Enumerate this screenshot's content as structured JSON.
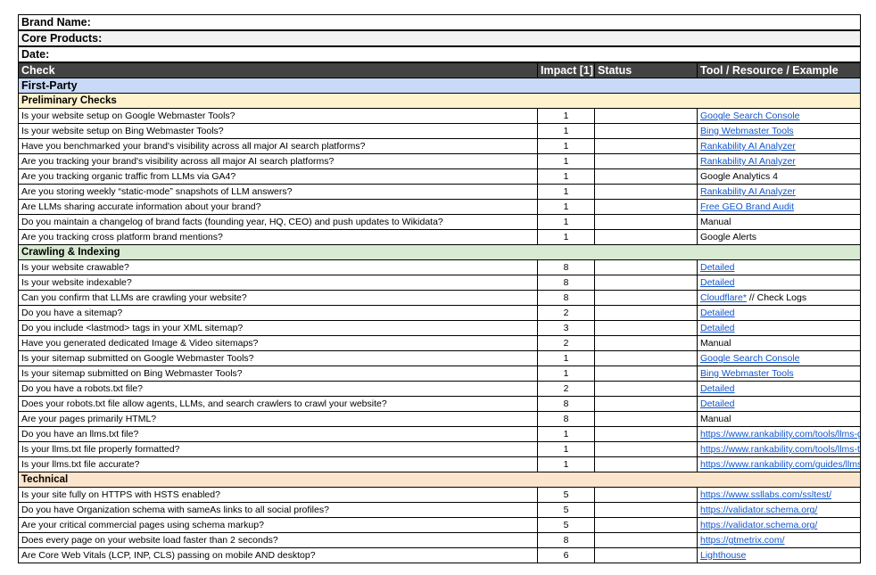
{
  "meta": {
    "brand": "Brand Name:",
    "products": "Core Products:",
    "date": "Date:"
  },
  "header": {
    "check": "Check",
    "impact": "Impact [1]",
    "status": "Status",
    "tool": "Tool / Resource / Example"
  },
  "group": "First-Party",
  "colors": {
    "header": "#434343",
    "group": "#c9daf8",
    "preliminary": "#fff2cc",
    "crawling": "#d9ead3",
    "technical": "#fce5cd"
  },
  "sections": [
    {
      "title": "Preliminary Checks",
      "color": "#fff2cc",
      "rows": [
        {
          "check": "Is your website setup on Google Webmaster Tools?",
          "impact": "1",
          "tool": "Google Search Console",
          "link": true
        },
        {
          "check": "Is your website setup on Bing Webmaster Tools?",
          "impact": "1",
          "tool": "Bing Webmaster Tools",
          "link": true
        },
        {
          "check": "Have you benchmarked your brand's visibility across all major AI search platforms?",
          "impact": "1",
          "tool": "Rankability AI Analyzer",
          "link": true
        },
        {
          "check": "Are you tracking your brand's visibility across all major AI search platforms?",
          "impact": "1",
          "tool": "Rankability AI Analyzer",
          "link": true
        },
        {
          "check": "Are you tracking organic traffic from LLMs via GA4?",
          "impact": "1",
          "tool": "Google Analytics 4",
          "link": false
        },
        {
          "check": "Are you storing weekly “static-mode” snapshots of LLM answers?",
          "impact": "1",
          "tool": "Rankability AI Analyzer",
          "link": true
        },
        {
          "check": "Are LLMs sharing accurate information about your brand?",
          "impact": "1",
          "tool": "Free GEO Brand Audit",
          "link": true
        },
        {
          "check": "Do you maintain a changelog of brand facts (founding year, HQ, CEO) and push updates to Wikidata?",
          "impact": "1",
          "tool": "Manual",
          "link": false
        },
        {
          "check": "Are you tracking cross platform brand mentions?",
          "impact": "1",
          "tool": "Google Alerts",
          "link": false
        }
      ]
    },
    {
      "title": "Crawling & Indexing",
      "color": "#d9ead3",
      "rows": [
        {
          "check": "Is your website crawable?",
          "impact": "8",
          "tool": "Detailed",
          "link": true
        },
        {
          "check": "Is your website indexable?",
          "impact": "8",
          "tool": "Detailed",
          "link": true
        },
        {
          "check": "Can you confirm that LLMs are crawling your website?",
          "impact": "8",
          "tool": "Cloudflare*",
          "link": true,
          "extra": " // Check Logs"
        },
        {
          "check": "Do you have a sitemap?",
          "impact": "2",
          "tool": "Detailed",
          "link": true
        },
        {
          "check": "Do you include <lastmod> tags in your XML sitemap?",
          "impact": "3",
          "tool": "Detailed",
          "link": true
        },
        {
          "check": "Have you generated dedicated Image & Video sitemaps?",
          "impact": "2",
          "tool": "Manual",
          "link": false
        },
        {
          "check": "Is your sitemap submitted on Google Webmaster Tools?",
          "impact": "1",
          "tool": "Google Search Console",
          "link": true
        },
        {
          "check": "Is your sitemap submitted on Bing Webmaster Tools?",
          "impact": "1",
          "tool": "Bing Webmaster Tools",
          "link": true
        },
        {
          "check": "Do you have a robots.txt file?",
          "impact": "2",
          "tool": "Detailed",
          "link": true
        },
        {
          "check": "Does your robots.txt file allow agents, LLMs, and search crawlers to crawl your website?",
          "impact": "8",
          "tool": "Detailed",
          "link": true
        },
        {
          "check": "Are your pages primarily HTML?",
          "impact": "8",
          "tool": "Manual",
          "link": false
        },
        {
          "check": "Do you have an llms.txt file?",
          "impact": "1",
          "tool": "https://www.rankability.com/tools/llms-g",
          "link": true
        },
        {
          "check": "Is your llms.txt file properly formatted?",
          "impact": "1",
          "tool": "https://www.rankability.com/tools/llms-tx",
          "link": true
        },
        {
          "check": "Is your llms.txt file accurate?",
          "impact": "1",
          "tool": "https://www.rankability.com/guides/llms",
          "link": true
        }
      ]
    },
    {
      "title": "Technical",
      "color": "#fce5cd",
      "rows": [
        {
          "check": "Is your site fully on HTTPS with HSTS enabled?",
          "impact": "5",
          "tool": "https://www.ssllabs.com/ssltest/",
          "link": true
        },
        {
          "check": "Do you have Organization schema with sameAs links to all social profiles?",
          "impact": "5",
          "tool": "https://validator.schema.org/",
          "link": true
        },
        {
          "check": "Are your critical commercial pages using schema markup?",
          "impact": "5",
          "tool": "https://validator.schema.org/",
          "link": true
        },
        {
          "check": "Does every page on your website load faster than 2 seconds?",
          "impact": "8",
          "tool": "https://gtmetrix.com/",
          "link": true
        },
        {
          "check": "Are Core Web Vitals (LCP, INP, CLS) passing on mobile AND desktop?",
          "impact": "6",
          "tool": "Lighthouse",
          "link": true
        }
      ]
    }
  ]
}
